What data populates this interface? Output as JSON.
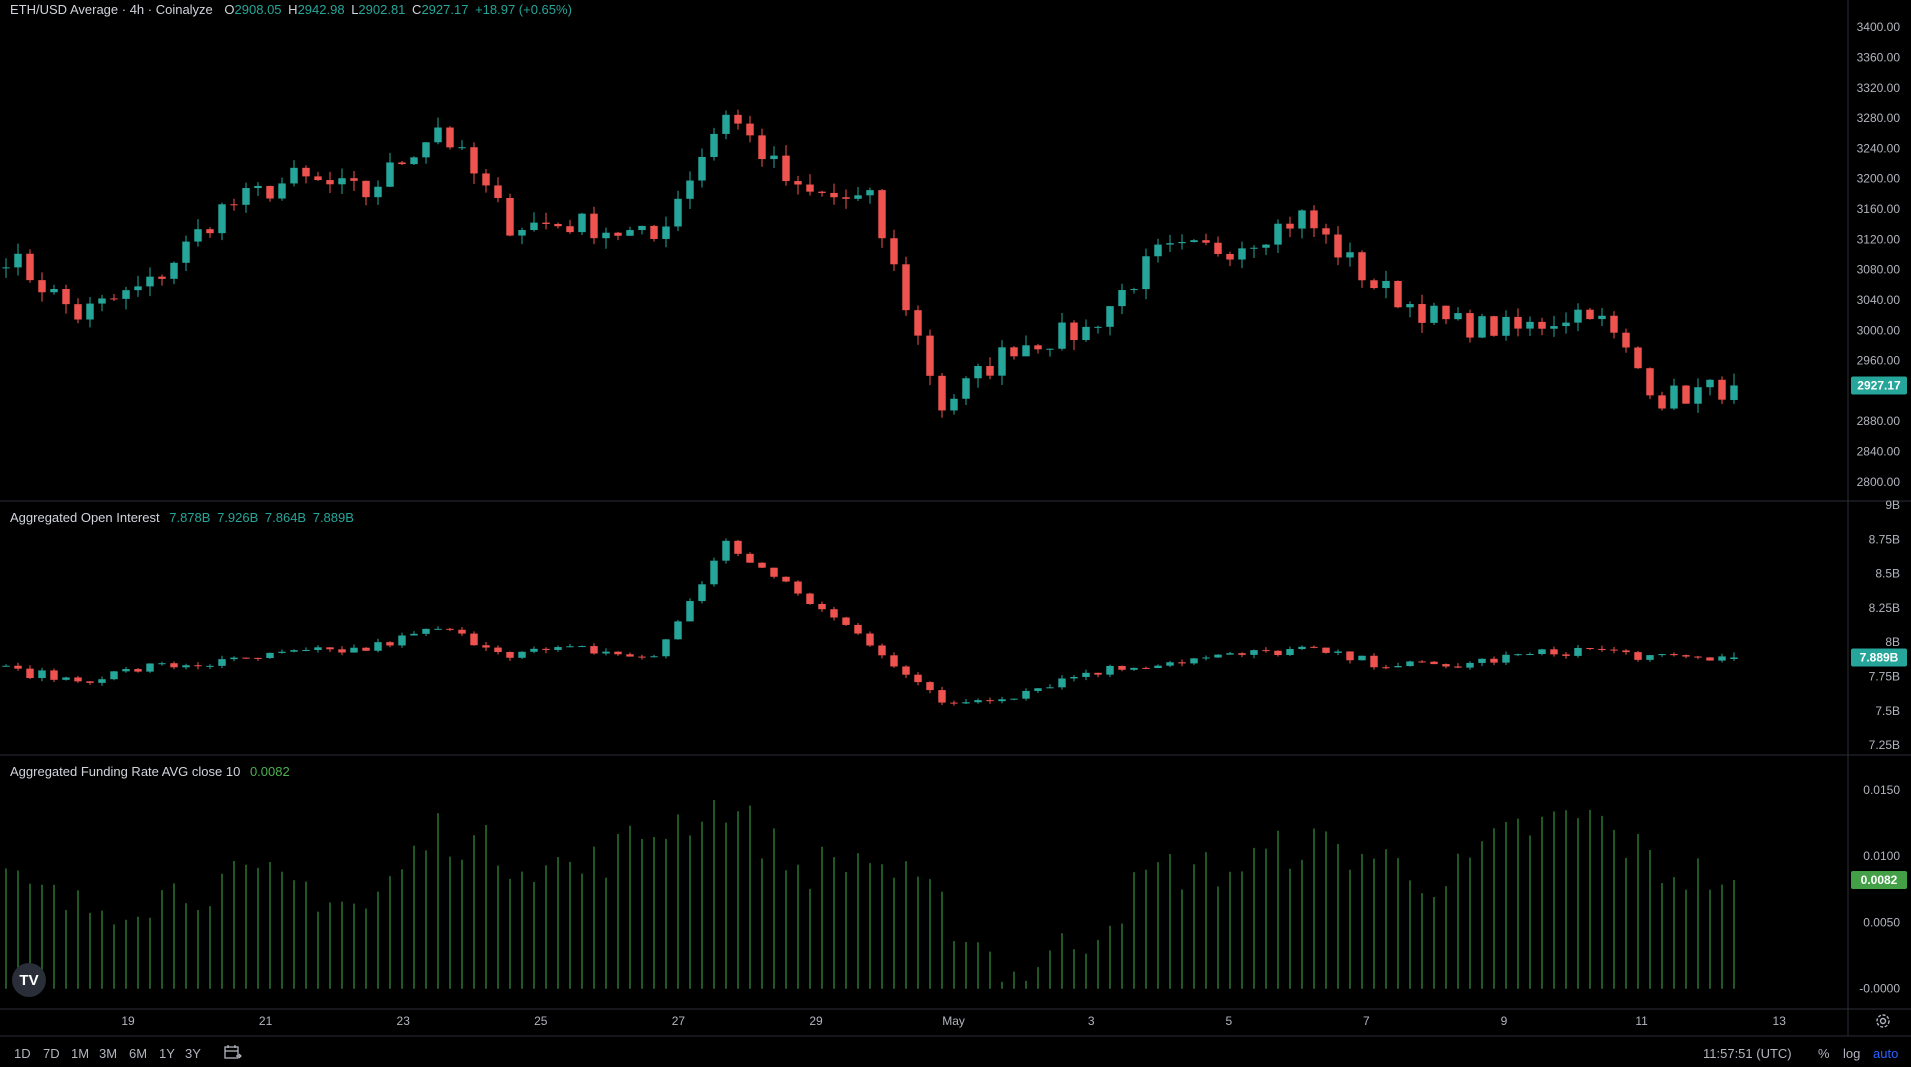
{
  "header": {
    "symbol": "ETH/USD Average · 4h · Coinalyze",
    "o_label": "O",
    "o_value": "2908.05",
    "h_label": "H",
    "h_value": "2942.98",
    "l_label": "L",
    "l_value": "2902.81",
    "c_label": "C",
    "c_value": "2927.17",
    "change": "+18.97 (+0.65%)"
  },
  "oi_legend": {
    "title": "Aggregated Open Interest",
    "o": "7.878B",
    "h": "7.926B",
    "l": "7.864B",
    "c": "7.889B"
  },
  "fr_legend": {
    "title": "Aggregated Funding Rate AVG close 10",
    "value": "0.0082"
  },
  "price_axis": {
    "ticks": [
      "3400.00",
      "3360.00",
      "3320.00",
      "3280.00",
      "3240.00",
      "3200.00",
      "3160.00",
      "3120.00",
      "3080.00",
      "3040.00",
      "3000.00",
      "2960.00",
      "2880.00",
      "2840.00",
      "2800.00"
    ],
    "tick_values": [
      3400,
      3360,
      3320,
      3280,
      3240,
      3200,
      3160,
      3120,
      3080,
      3040,
      3000,
      2960,
      2880,
      2840,
      2800
    ],
    "last": "2927.17",
    "last_value": 2927.17
  },
  "oi_axis": {
    "ticks": [
      "9B",
      "8.75B",
      "8.5B",
      "8.25B",
      "8B",
      "7.75B",
      "7.5B",
      "7.25B"
    ],
    "tick_values": [
      9,
      8.75,
      8.5,
      8.25,
      8,
      7.75,
      7.5,
      7.25
    ],
    "last": "7.889B",
    "last_value": 7.889
  },
  "fr_axis": {
    "ticks": [
      "0.0150",
      "0.0100",
      "0.0050",
      "-0.0000"
    ],
    "tick_values": [
      0.015,
      0.01,
      0.005,
      0
    ],
    "last": "0.0082",
    "last_value": 0.0082
  },
  "time_axis": {
    "labels": [
      "19",
      "21",
      "23",
      "25",
      "27",
      "29",
      "May",
      "3",
      "5",
      "7",
      "9",
      "11",
      "13"
    ]
  },
  "toolbar": {
    "ranges": [
      "1D",
      "7D",
      "1M",
      "3M",
      "6M",
      "1Y",
      "3Y"
    ],
    "calendar_icon": "calendar-icon",
    "time": "11:57:51 (UTC)",
    "percent": "%",
    "log": "log",
    "auto": "auto",
    "settings_icon": "gear-icon"
  },
  "logo": "TV",
  "colors": {
    "up": "#26a69a",
    "down": "#ef5350",
    "funding": "#2e7d32",
    "funding_label": "#4caf50",
    "background": "#000000"
  },
  "chart_data": [
    {
      "type": "candlestick",
      "title": "ETH/USD Average · 4h · Coinalyze",
      "ylim": [
        2780,
        3420
      ],
      "x_range": [
        "Apr 18",
        "May 12"
      ],
      "anchors": [
        {
          "date": "Apr 18",
          "value": 3100
        },
        {
          "date": "Apr 19",
          "value": 3020
        },
        {
          "date": "Apr 20",
          "value": 3060
        },
        {
          "date": "Apr 21",
          "value": 3160
        },
        {
          "date": "Apr 22",
          "value": 3200
        },
        {
          "date": "Apr 23",
          "value": 3180
        },
        {
          "date": "Apr 24",
          "value": 3270
        },
        {
          "date": "Apr 25",
          "value": 3140
        },
        {
          "date": "Apr 26",
          "value": 3140
        },
        {
          "date": "Apr 27",
          "value": 3120
        },
        {
          "date": "Apr 28",
          "value": 3290
        },
        {
          "date": "Apr 29",
          "value": 3180
        },
        {
          "date": "Apr 30",
          "value": 3170
        },
        {
          "date": "May 1",
          "value": 2900
        },
        {
          "date": "May 2",
          "value": 2980
        },
        {
          "date": "May 3",
          "value": 3000
        },
        {
          "date": "May 4",
          "value": 3100
        },
        {
          "date": "May 5",
          "value": 3110
        },
        {
          "date": "May 6",
          "value": 3150
        },
        {
          "date": "May 7",
          "value": 3060
        },
        {
          "date": "May 8",
          "value": 3010
        },
        {
          "date": "May 9",
          "value": 3000
        },
        {
          "date": "May 10",
          "value": 3030
        },
        {
          "date": "May 11",
          "value": 2910
        },
        {
          "date": "May 12",
          "value": 2927
        }
      ],
      "last": {
        "open": 2908.05,
        "high": 2942.98,
        "low": 2902.81,
        "close": 2927.17
      }
    },
    {
      "type": "candlestick",
      "title": "Aggregated Open Interest",
      "unit": "B",
      "ylim": [
        7.2,
        9.0
      ],
      "anchors": [
        {
          "date": "Apr 18",
          "value": 7.8
        },
        {
          "date": "Apr 19",
          "value": 7.72
        },
        {
          "date": "Apr 20",
          "value": 7.82
        },
        {
          "date": "Apr 21",
          "value": 7.85
        },
        {
          "date": "Apr 22",
          "value": 7.92
        },
        {
          "date": "Apr 23",
          "value": 7.95
        },
        {
          "date": "Apr 24",
          "value": 8.1
        },
        {
          "date": "Apr 25",
          "value": 7.92
        },
        {
          "date": "Apr 26",
          "value": 7.95
        },
        {
          "date": "Apr 27",
          "value": 7.88
        },
        {
          "date": "Apr 28",
          "value": 8.72
        },
        {
          "date": "Apr 29",
          "value": 8.35
        },
        {
          "date": "Apr 30",
          "value": 8.0
        },
        {
          "date": "May 1",
          "value": 7.55
        },
        {
          "date": "May 2",
          "value": 7.62
        },
        {
          "date": "May 3",
          "value": 7.78
        },
        {
          "date": "May 4",
          "value": 7.85
        },
        {
          "date": "May 5",
          "value": 7.9
        },
        {
          "date": "May 6",
          "value": 7.95
        },
        {
          "date": "May 7",
          "value": 7.85
        },
        {
          "date": "May 8",
          "value": 7.82
        },
        {
          "date": "May 9",
          "value": 7.9
        },
        {
          "date": "May 10",
          "value": 7.95
        },
        {
          "date": "May 11",
          "value": 7.88
        },
        {
          "date": "May 12",
          "value": 7.889
        }
      ],
      "last": {
        "open": 7.878,
        "high": 7.926,
        "low": 7.864,
        "close": 7.889
      }
    },
    {
      "type": "bar",
      "title": "Aggregated Funding Rate AVG close 10",
      "ylim": [
        -0.001,
        0.0165
      ],
      "anchors": [
        {
          "date": "Apr 18",
          "value": 0.008
        },
        {
          "date": "Apr 19",
          "value": 0.006
        },
        {
          "date": "Apr 20",
          "value": 0.007
        },
        {
          "date": "Apr 21",
          "value": 0.008
        },
        {
          "date": "Apr 22",
          "value": 0.008
        },
        {
          "date": "Apr 23",
          "value": 0.006
        },
        {
          "date": "Apr 24",
          "value": 0.012
        },
        {
          "date": "Apr 25",
          "value": 0.01
        },
        {
          "date": "Apr 26",
          "value": 0.009
        },
        {
          "date": "Apr 27",
          "value": 0.012
        },
        {
          "date": "Apr 28",
          "value": 0.014
        },
        {
          "date": "Apr 29",
          "value": 0.009
        },
        {
          "date": "Apr 30",
          "value": 0.01
        },
        {
          "date": "May 1",
          "value": 0.006
        },
        {
          "date": "May 2",
          "value": 0.001
        },
        {
          "date": "May 3",
          "value": 0.004
        },
        {
          "date": "May 4",
          "value": 0.009
        },
        {
          "date": "May 5",
          "value": 0.009
        },
        {
          "date": "May 6",
          "value": 0.011
        },
        {
          "date": "May 7",
          "value": 0.01
        },
        {
          "date": "May 8",
          "value": 0.008
        },
        {
          "date": "May 9",
          "value": 0.012
        },
        {
          "date": "May 10",
          "value": 0.013
        },
        {
          "date": "May 11",
          "value": 0.009
        },
        {
          "date": "May 12",
          "value": 0.0082
        }
      ],
      "last": 0.0082
    }
  ]
}
